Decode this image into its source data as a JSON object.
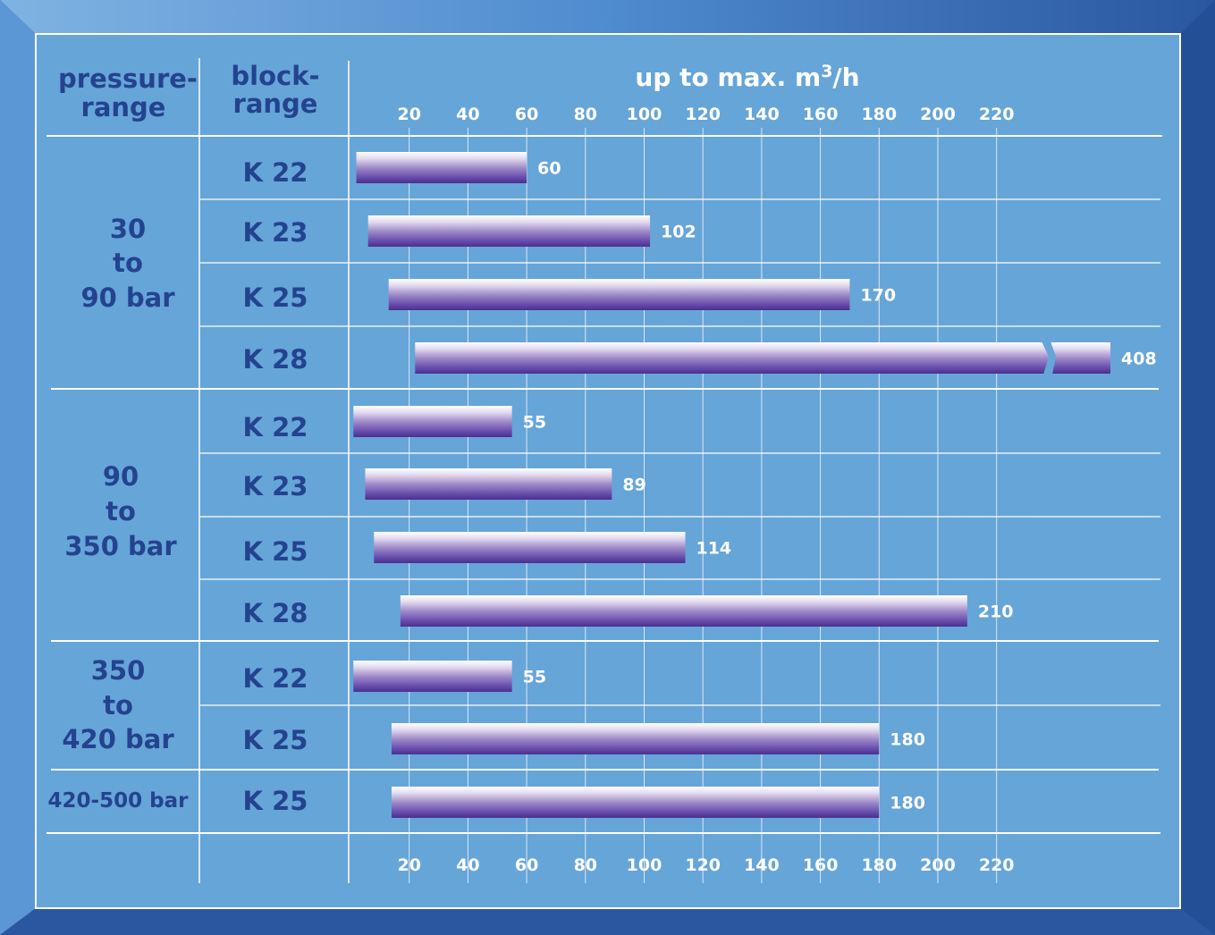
{
  "header": {
    "pressure_label_1": "pressure-",
    "pressure_label_2": "range",
    "block_label_1": "block-",
    "block_label_2": "range",
    "axis_title_prefix": "up to max. m",
    "axis_title_sup": "3",
    "axis_title_suffix": "/h"
  },
  "pressure_groups": [
    {
      "lines": [
        "30",
        "to",
        "90 bar"
      ]
    },
    {
      "lines": [
        "90",
        "to",
        "350 bar"
      ]
    },
    {
      "lines": [
        "350",
        "to",
        "420 bar"
      ]
    },
    {
      "lines": [
        "420-500 bar"
      ]
    }
  ],
  "colors": {
    "frame_dark": "#2a57a0",
    "panel": "#66a5d8",
    "text_blue": "#24438f",
    "bar_top": "#ffffff",
    "bar_bottom": "#4d3293",
    "grid": "#ffffff"
  },
  "chart_data": {
    "type": "bar",
    "orientation": "horizontal",
    "x_ticks": [
      20,
      40,
      60,
      80,
      100,
      120,
      140,
      160,
      180,
      200,
      220
    ],
    "xlim": [
      0,
      240
    ],
    "grid": true,
    "categories": [
      "K 22",
      "K 23",
      "K 25",
      "K 28",
      "K 22",
      "K 23",
      "K 25",
      "K 28",
      "K 22",
      "K 25",
      "K 25"
    ],
    "values": [
      60,
      102,
      170,
      408,
      55,
      89,
      114,
      210,
      55,
      180,
      180
    ],
    "value_labels": [
      "60",
      "102",
      "170",
      "408",
      "55",
      "89",
      "114",
      "210",
      "55",
      "180",
      "180"
    ],
    "broken_axis_bars": [
      "408"
    ],
    "bar_starts": [
      2,
      6,
      13,
      22,
      1,
      5,
      8,
      17,
      1,
      14,
      14
    ]
  }
}
